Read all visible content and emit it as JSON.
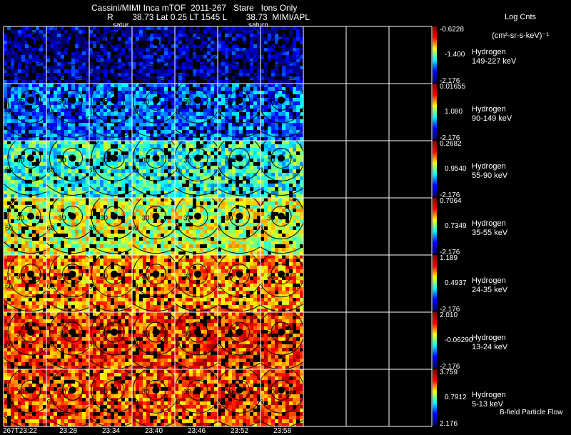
{
  "header": {
    "title": "Cassini/MIMI Inca mTOF  2011-267   Stare   Ions Only",
    "subtitle": "R        38.73 Lat 0.25 LT 1545 L        38.73  MIMI/APL",
    "units_line1": "Log Cnts",
    "units_line2": "(cm²-sr-s-keV)⁻¹",
    "saturn_labels": [
      "satur",
      "saturn"
    ]
  },
  "time_labels": [
    "267T23:22",
    "23:28",
    "23:34",
    "23:40",
    "23:46",
    "23:52",
    "23:58"
  ],
  "rows": [
    {
      "species": "Hydrogen",
      "energy": "149-227 keV",
      "max": "-0.6228",
      "mid": "-1.400",
      "min": "-2.176",
      "level": 0.05
    },
    {
      "species": "Hydrogen",
      "energy": "90-149 keV",
      "max": "0.01655",
      "mid": "1.080",
      "min": "-2.176",
      "level": 0.22
    },
    {
      "species": "Hydrogen",
      "energy": "55-90 keV",
      "max": "0.2682",
      "mid": "0.9540",
      "min": "-2.176",
      "level": 0.42
    },
    {
      "species": "Hydrogen",
      "energy": "35-55 keV",
      "max": "0.7064",
      "mid": "0.7349",
      "min": "-2.176",
      "level": 0.58
    },
    {
      "species": "Hydrogen",
      "energy": "24-35 keV",
      "max": "1.189",
      "mid": "0.4937",
      "min": "-2.176",
      "level": 0.74
    },
    {
      "species": "Hydrogen",
      "energy": "13-24 keV",
      "max": "2.010",
      "mid": "-0.06290",
      "min": "-2.176",
      "level": 0.82
    },
    {
      "species": "Hydrogen",
      "energy": "5-13 keV",
      "max": "3.759",
      "mid": "0.7912",
      "min": "2.176",
      "level": 0.8
    }
  ],
  "contour_labels": [
    "30",
    "60",
    "90"
  ],
  "footer": {
    "bfield": "B-field Particle Flow"
  },
  "colors": {
    "background": "#000000",
    "grid_lines": "#ffffff",
    "contours": "#000000"
  }
}
